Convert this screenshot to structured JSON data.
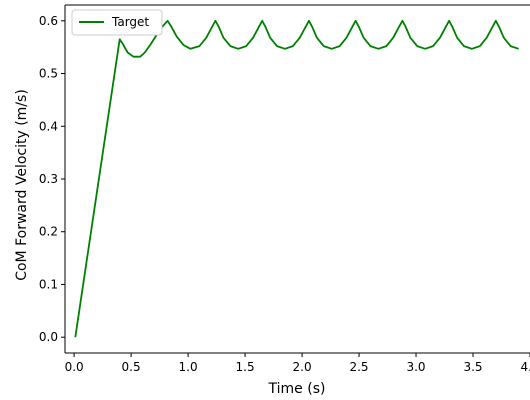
{
  "chart_data": {
    "type": "line",
    "xlabel": "Time (s)",
    "ylabel": "CoM Forward Velocity (m/s)",
    "xlim": [
      -0.08,
      4.0
    ],
    "ylim": [
      -0.03,
      0.63
    ],
    "x_ticks": [
      "0.0",
      "0.5",
      "1.0",
      "1.5",
      "2.0",
      "2.5",
      "3.0",
      "3.5",
      "4.0"
    ],
    "y_ticks": [
      "0.0",
      "0.1",
      "0.2",
      "0.3",
      "0.4",
      "0.5",
      "0.6"
    ],
    "grid": false,
    "legend_position": "top-left",
    "series": [
      {
        "name": "Target",
        "color": "#008000",
        "x": [
          0.01,
          0.4,
          0.43,
          0.47,
          0.52,
          0.58,
          0.62,
          0.67,
          0.72,
          0.77,
          0.82,
          0.85,
          0.9,
          0.96,
          1.02,
          1.1,
          1.16,
          1.21,
          1.24,
          1.27,
          1.31,
          1.37,
          1.44,
          1.51,
          1.57,
          1.62,
          1.65,
          1.68,
          1.72,
          1.78,
          1.85,
          1.92,
          1.98,
          2.03,
          2.06,
          2.09,
          2.13,
          2.19,
          2.26,
          2.33,
          2.39,
          2.44,
          2.47,
          2.5,
          2.54,
          2.6,
          2.67,
          2.74,
          2.8,
          2.85,
          2.88,
          2.91,
          2.95,
          3.01,
          3.08,
          3.15,
          3.21,
          3.26,
          3.29,
          3.32,
          3.36,
          3.42,
          3.49,
          3.56,
          3.62,
          3.67,
          3.7,
          3.73,
          3.77,
          3.83,
          3.9
        ],
        "y": [
          0.0,
          0.565,
          0.555,
          0.54,
          0.532,
          0.532,
          0.54,
          0.555,
          0.572,
          0.588,
          0.6,
          0.59,
          0.57,
          0.554,
          0.547,
          0.552,
          0.568,
          0.588,
          0.6,
          0.588,
          0.568,
          0.552,
          0.547,
          0.552,
          0.568,
          0.588,
          0.6,
          0.588,
          0.568,
          0.552,
          0.547,
          0.552,
          0.568,
          0.588,
          0.6,
          0.588,
          0.568,
          0.552,
          0.547,
          0.552,
          0.568,
          0.588,
          0.6,
          0.588,
          0.568,
          0.552,
          0.547,
          0.552,
          0.568,
          0.588,
          0.6,
          0.588,
          0.568,
          0.552,
          0.547,
          0.552,
          0.568,
          0.588,
          0.6,
          0.588,
          0.568,
          0.552,
          0.547,
          0.552,
          0.568,
          0.588,
          0.6,
          0.588,
          0.568,
          0.552,
          0.547
        ]
      }
    ]
  }
}
